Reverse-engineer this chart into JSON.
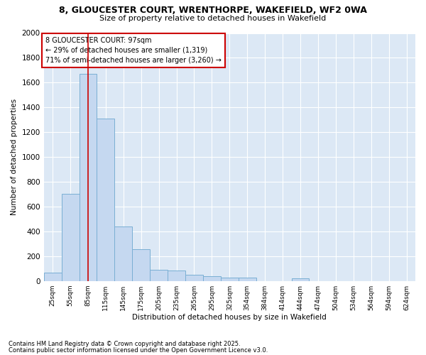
{
  "title_line1": "8, GLOUCESTER COURT, WRENTHORPE, WAKEFIELD, WF2 0WA",
  "title_line2": "Size of property relative to detached houses in Wakefield",
  "xlabel": "Distribution of detached houses by size in Wakefield",
  "ylabel": "Number of detached properties",
  "footer_line1": "Contains HM Land Registry data © Crown copyright and database right 2025.",
  "footer_line2": "Contains public sector information licensed under the Open Government Licence v3.0.",
  "categories": [
    "25sqm",
    "55sqm",
    "85sqm",
    "115sqm",
    "145sqm",
    "175sqm",
    "205sqm",
    "235sqm",
    "265sqm",
    "295sqm",
    "325sqm",
    "354sqm",
    "384sqm",
    "414sqm",
    "444sqm",
    "474sqm",
    "504sqm",
    "534sqm",
    "564sqm",
    "594sqm",
    "624sqm"
  ],
  "values": [
    65,
    700,
    1670,
    1310,
    440,
    255,
    90,
    85,
    50,
    40,
    25,
    25,
    0,
    0,
    20,
    0,
    0,
    0,
    0,
    0,
    0
  ],
  "bar_color": "#c5d8f0",
  "bar_edge_color": "#7aafd4",
  "figure_background_color": "#ffffff",
  "plot_background_color": "#dce8f5",
  "grid_color": "#ffffff",
  "vline_x": 2,
  "vline_color": "#cc0000",
  "annotation_box_text": "8 GLOUCESTER COURT: 97sqm\n← 29% of detached houses are smaller (1,319)\n71% of semi-detached houses are larger (3,260) →",
  "annotation_box_color": "#cc0000",
  "annotation_box_facecolor": "#ffffff",
  "ylim": [
    0,
    2000
  ],
  "yticks": [
    0,
    200,
    400,
    600,
    800,
    1000,
    1200,
    1400,
    1600,
    1800,
    2000
  ]
}
